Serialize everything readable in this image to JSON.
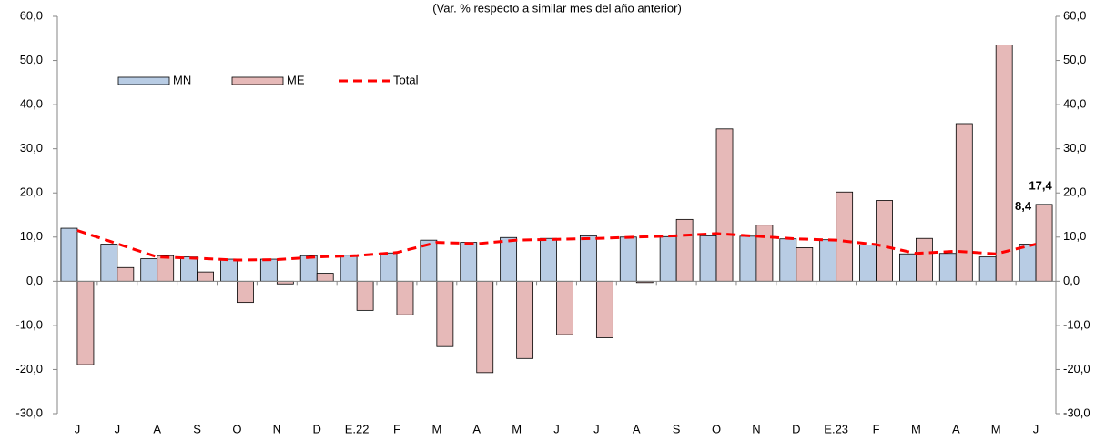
{
  "chart_data": {
    "type": "bar-line",
    "subtitle": "(Var. % respecto a similar mes del año anterior)",
    "categories": [
      "J",
      "J",
      "A",
      "S",
      "O",
      "N",
      "D",
      "E.22",
      "F",
      "M",
      "A",
      "M",
      "J",
      "J",
      "A",
      "S",
      "O",
      "N",
      "D",
      "E.23",
      "F",
      "M",
      "A",
      "M",
      "J"
    ],
    "series": [
      {
        "name": "MN",
        "type": "bar",
        "color": "#b8cce4",
        "values": [
          12.0,
          8.4,
          5.1,
          5.5,
          5.0,
          5.0,
          5.8,
          5.9,
          6.4,
          9.3,
          8.8,
          9.9,
          9.7,
          10.3,
          10.0,
          10.1,
          10.3,
          10.2,
          9.6,
          9.4,
          8.2,
          6.2,
          6.3,
          5.5,
          8.4
        ]
      },
      {
        "name": "ME",
        "type": "bar",
        "color": "#e6b9b8",
        "values": [
          -18.9,
          3.1,
          5.8,
          2.1,
          -4.8,
          -0.6,
          1.8,
          -6.6,
          -7.6,
          -14.8,
          -20.7,
          -17.5,
          -12.1,
          -12.8,
          -0.3,
          14.0,
          34.5,
          12.7,
          7.6,
          20.2,
          18.3,
          9.7,
          35.7,
          53.5,
          17.4
        ],
        "value_labels": [
          null,
          null,
          null,
          null,
          null,
          null,
          null,
          null,
          null,
          null,
          null,
          null,
          null,
          null,
          null,
          null,
          null,
          null,
          null,
          null,
          null,
          null,
          null,
          null,
          "17,4"
        ]
      },
      {
        "name": "Total",
        "type": "line",
        "color": "#ff0000",
        "values": [
          11.5,
          8.5,
          5.5,
          5.2,
          4.8,
          4.9,
          5.5,
          5.8,
          6.5,
          8.8,
          8.5,
          9.3,
          9.5,
          9.7,
          10.0,
          10.3,
          10.8,
          10.2,
          9.6,
          9.3,
          8.3,
          6.3,
          6.8,
          6.2,
          8.4
        ],
        "value_labels": [
          null,
          null,
          null,
          null,
          null,
          null,
          null,
          null,
          null,
          null,
          null,
          null,
          null,
          null,
          null,
          null,
          null,
          null,
          null,
          null,
          null,
          null,
          null,
          null,
          "8,4"
        ]
      }
    ],
    "ylim": [
      -30,
      60
    ],
    "yticks": [
      {
        "value": -30,
        "label": "-30,0"
      },
      {
        "value": -20,
        "label": "-20,0"
      },
      {
        "value": -10,
        "label": "-10,0"
      },
      {
        "value": 0,
        "label": "0,0"
      },
      {
        "value": 10,
        "label": "10,0"
      },
      {
        "value": 20,
        "label": "20,0"
      },
      {
        "value": 30,
        "label": "30,0"
      },
      {
        "value": 40,
        "label": "40,0"
      },
      {
        "value": 50,
        "label": "50,0"
      },
      {
        "value": 60,
        "label": "60,0"
      }
    ],
    "y2lim": [
      -30,
      60
    ],
    "y2ticks": [
      {
        "value": -30,
        "label": "-30,0"
      },
      {
        "value": -20,
        "label": "-20,0"
      },
      {
        "value": -10,
        "label": "-10,0"
      },
      {
        "value": 0,
        "label": "0,0"
      },
      {
        "value": 10,
        "label": "10,0"
      },
      {
        "value": 20,
        "label": "20,0"
      },
      {
        "value": 30,
        "label": "30,0"
      },
      {
        "value": 40,
        "label": "40,0"
      },
      {
        "value": 50,
        "label": "50,0"
      },
      {
        "value": 60,
        "label": "60,0"
      }
    ]
  }
}
